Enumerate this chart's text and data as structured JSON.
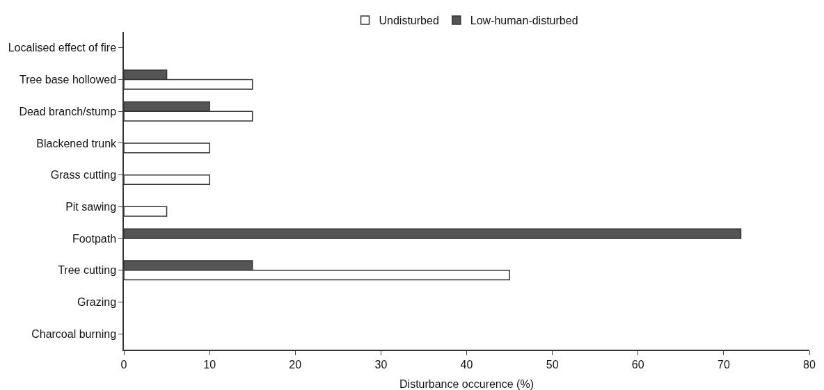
{
  "chart_data": {
    "type": "bar",
    "orientation": "horizontal",
    "xlabel": "Disturbance occurence (%)",
    "categories": [
      "Localised effect of fire",
      "Tree base hollowed",
      "Dead branch/stump",
      "Blackened trunk",
      "Grass cutting",
      "Pit sawing",
      "Footpath",
      "Tree cutting",
      "Grazing",
      "Charcoal burning"
    ],
    "series": [
      {
        "name": "Low-human-disturbed",
        "color": "#555555",
        "values": [
          0,
          5,
          10,
          0,
          0,
          0,
          72,
          15,
          0,
          0
        ]
      },
      {
        "name": "Undisturbed",
        "color": "#ffffff",
        "values": [
          0,
          15,
          15,
          10,
          10,
          5,
          0,
          45,
          0,
          0
        ]
      }
    ],
    "xlim": [
      0,
      80
    ],
    "xticks": [
      0,
      10,
      20,
      30,
      40,
      50,
      60,
      70,
      80
    ],
    "grid": false,
    "legend": "top"
  }
}
